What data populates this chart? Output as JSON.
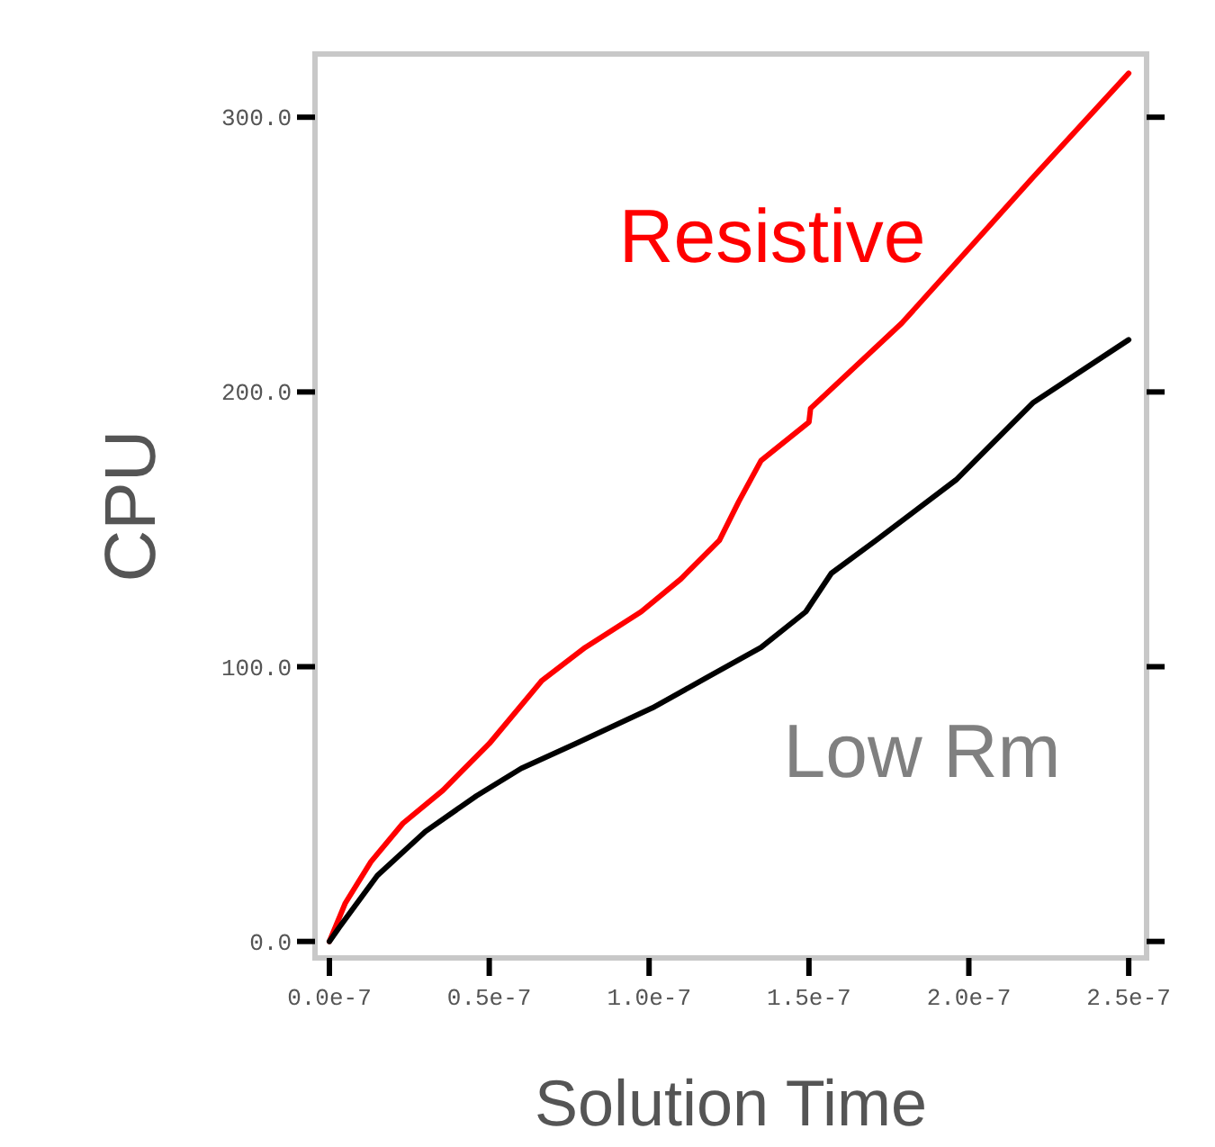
{
  "chart_data": {
    "type": "line",
    "xlabel": "Solution Time",
    "ylabel": "CPU",
    "xlim": [
      -4.5e-09,
      2.556e-07
    ],
    "ylim": [
      -6,
      323
    ],
    "xticks": [
      {
        "value": 0,
        "label": "0.0e-7"
      },
      {
        "value": 5e-08,
        "label": "0.5e-7"
      },
      {
        "value": 1e-07,
        "label": "1.0e-7"
      },
      {
        "value": 1.5e-07,
        "label": "1.5e-7"
      },
      {
        "value": 2e-07,
        "label": "2.0e-7"
      },
      {
        "value": 2.5e-07,
        "label": "2.5e-7"
      }
    ],
    "yticks": [
      {
        "value": 0,
        "label": "0.0"
      },
      {
        "value": 100,
        "label": "100.0"
      },
      {
        "value": 200,
        "label": "200.0"
      },
      {
        "value": 300,
        "label": "300.0"
      }
    ],
    "grid": false,
    "line_style": "solid",
    "series": [
      {
        "name": "Resistive",
        "color": "#ff0000",
        "x": [
          0,
          5e-09,
          1.3e-08,
          2.3e-08,
          3.55e-08,
          5e-08,
          6.65e-08,
          8e-08,
          9.75e-08,
          1.1e-07,
          1.22e-07,
          1.28e-07,
          1.35e-07,
          1.5e-07,
          1.505e-07,
          1.79e-07,
          2.2e-07,
          2.5e-07
        ],
        "values": [
          0,
          14,
          29,
          43,
          55,
          72,
          95,
          107,
          120,
          132,
          146,
          160,
          175,
          189,
          194,
          225,
          278,
          316
        ]
      },
      {
        "name": "Low Rm",
        "color": "#000000",
        "x": [
          0,
          3e-09,
          1.5e-08,
          3e-08,
          4.6e-08,
          6e-08,
          7.7e-08,
          1.01e-07,
          1.18e-07,
          1.35e-07,
          1.49e-07,
          1.57e-07,
          1.71e-07,
          1.96e-07,
          2.2e-07,
          2.5e-07
        ],
        "values": [
          0,
          5,
          24,
          40,
          53,
          63,
          72,
          85,
          96,
          107,
          120,
          134,
          146,
          168,
          196,
          219
        ]
      }
    ]
  }
}
